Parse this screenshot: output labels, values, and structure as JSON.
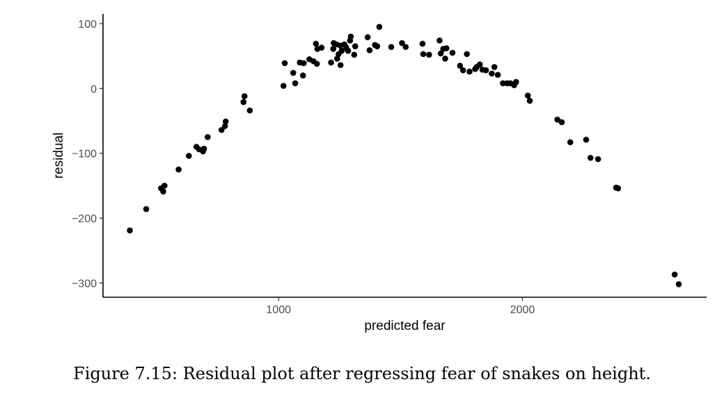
{
  "caption": "Figure 7.15: Residual plot after regressing fear of snakes on height.",
  "chart_data": {
    "type": "scatter",
    "title": "",
    "xlabel": "predicted fear",
    "ylabel": "residual",
    "xlim": [
      280,
      2755
    ],
    "ylim": [
      -322,
      115
    ],
    "xticks": [
      1000,
      2000
    ],
    "xtick_labels": [
      "1000",
      "2000"
    ],
    "yticks": [
      100,
      0,
      -100,
      -200,
      -300
    ],
    "ytick_labels": [
      "100",
      "0",
      "−100",
      "−200",
      "−300"
    ],
    "grid": false,
    "legend": "none",
    "colors": {
      "point": "#000000",
      "axis": "#000000",
      "tick_label": "#4d4d4d"
    },
    "series": [
      {
        "points": [
          [
            390,
            -219
          ],
          [
            457,
            -186
          ],
          [
            518,
            -154
          ],
          [
            527,
            -159
          ],
          [
            532,
            -150
          ],
          [
            590,
            -125
          ],
          [
            632,
            -104
          ],
          [
            663,
            -90
          ],
          [
            674,
            -94
          ],
          [
            690,
            -97
          ],
          [
            694,
            -93
          ],
          [
            709,
            -75
          ],
          [
            766,
            -64
          ],
          [
            780,
            -58
          ],
          [
            783,
            -51
          ],
          [
            856,
            -21
          ],
          [
            860,
            -12
          ],
          [
            882,
            -34
          ],
          [
            1020,
            4
          ],
          [
            1025,
            39
          ],
          [
            1060,
            24
          ],
          [
            1068,
            8
          ],
          [
            1087,
            40
          ],
          [
            1100,
            20
          ],
          [
            1103,
            39
          ],
          [
            1126,
            45
          ],
          [
            1143,
            42
          ],
          [
            1153,
            69
          ],
          [
            1157,
            38
          ],
          [
            1159,
            61
          ],
          [
            1176,
            63
          ],
          [
            1215,
            40
          ],
          [
            1224,
            61
          ],
          [
            1226,
            70
          ],
          [
            1238,
            68
          ],
          [
            1240,
            46
          ],
          [
            1246,
            53
          ],
          [
            1253,
            66
          ],
          [
            1254,
            36
          ],
          [
            1259,
            58
          ],
          [
            1270,
            68
          ],
          [
            1277,
            63
          ],
          [
            1285,
            58
          ],
          [
            1293,
            74
          ],
          [
            1296,
            80
          ],
          [
            1310,
            52
          ],
          [
            1314,
            65
          ],
          [
            1365,
            79
          ],
          [
            1373,
            59
          ],
          [
            1395,
            67
          ],
          [
            1404,
            65
          ],
          [
            1413,
            95
          ],
          [
            1462,
            64
          ],
          [
            1506,
            70
          ],
          [
            1521,
            64
          ],
          [
            1590,
            69
          ],
          [
            1593,
            53
          ],
          [
            1617,
            52
          ],
          [
            1660,
            74
          ],
          [
            1665,
            54
          ],
          [
            1675,
            61
          ],
          [
            1683,
            46
          ],
          [
            1688,
            62
          ],
          [
            1713,
            55
          ],
          [
            1744,
            35
          ],
          [
            1756,
            28
          ],
          [
            1772,
            53
          ],
          [
            1783,
            26
          ],
          [
            1806,
            30
          ],
          [
            1812,
            33
          ],
          [
            1825,
            37
          ],
          [
            1836,
            29
          ],
          [
            1850,
            28
          ],
          [
            1874,
            23
          ],
          [
            1885,
            33
          ],
          [
            1899,
            21
          ],
          [
            1920,
            8
          ],
          [
            1937,
            8
          ],
          [
            1951,
            8
          ],
          [
            1966,
            5
          ],
          [
            1974,
            10
          ],
          [
            2022,
            -11
          ],
          [
            2030,
            -19
          ],
          [
            2143,
            -48
          ],
          [
            2161,
            -52
          ],
          [
            2196,
            -83
          ],
          [
            2261,
            -79
          ],
          [
            2279,
            -107
          ],
          [
            2310,
            -109
          ],
          [
            2384,
            -153
          ],
          [
            2392,
            -154
          ],
          [
            2624,
            -287
          ],
          [
            2641,
            -302
          ]
        ]
      }
    ]
  }
}
